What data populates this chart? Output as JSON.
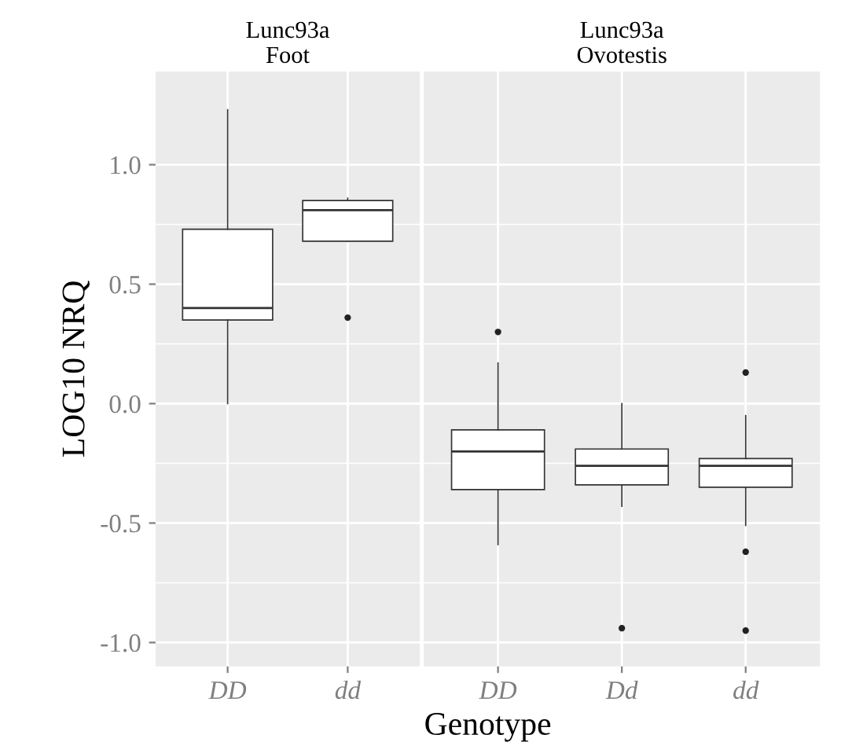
{
  "chart_data": [
    {
      "type": "box",
      "title": "Lunc93a\nFoot",
      "xlabel": "Genotype",
      "ylabel": "LOG10 NRQ",
      "categories": [
        "DD",
        "dd"
      ],
      "boxes": [
        {
          "low": 0.0,
          "q1": 0.35,
          "median": 0.4,
          "q3": 0.73,
          "high": 1.23
        },
        {
          "low": 0.68,
          "q1": 0.68,
          "median": 0.81,
          "q3": 0.85,
          "high": 0.86,
          "outliers": [
            0.36
          ]
        }
      ],
      "ylim": [
        -1.1,
        1.39
      ],
      "yticks": [
        {
          "value": -1.0,
          "label": "-1.0"
        },
        {
          "value": -0.5,
          "label": "-0.5"
        },
        {
          "value": 0.0,
          "label": "0.0"
        },
        {
          "value": 0.5,
          "label": "0.5"
        },
        {
          "value": 1.0,
          "label": "1.0"
        }
      ],
      "grid": true
    },
    {
      "type": "box",
      "title": "Lunc93a\nOvotestis",
      "categories": [
        "DD",
        "Dd",
        "dd"
      ],
      "boxes": [
        {
          "low": -0.59,
          "q1": -0.36,
          "median": -0.2,
          "q3": -0.11,
          "high": 0.17,
          "outliers": [
            0.3
          ]
        },
        {
          "low": -0.43,
          "q1": -0.34,
          "median": -0.26,
          "q3": -0.19,
          "high": 0.0,
          "outliers": [
            -0.94
          ]
        },
        {
          "low": -0.51,
          "q1": -0.35,
          "median": -0.26,
          "q3": -0.23,
          "high": -0.05,
          "outliers": [
            0.13,
            -0.62,
            -0.95
          ]
        }
      ],
      "ylim": [
        -1.1,
        1.39
      ],
      "yticks": [
        -1.0,
        -0.5,
        0.0,
        0.5,
        1.0
      ],
      "grid": true,
      "tick_labels": "x"
    }
  ]
}
